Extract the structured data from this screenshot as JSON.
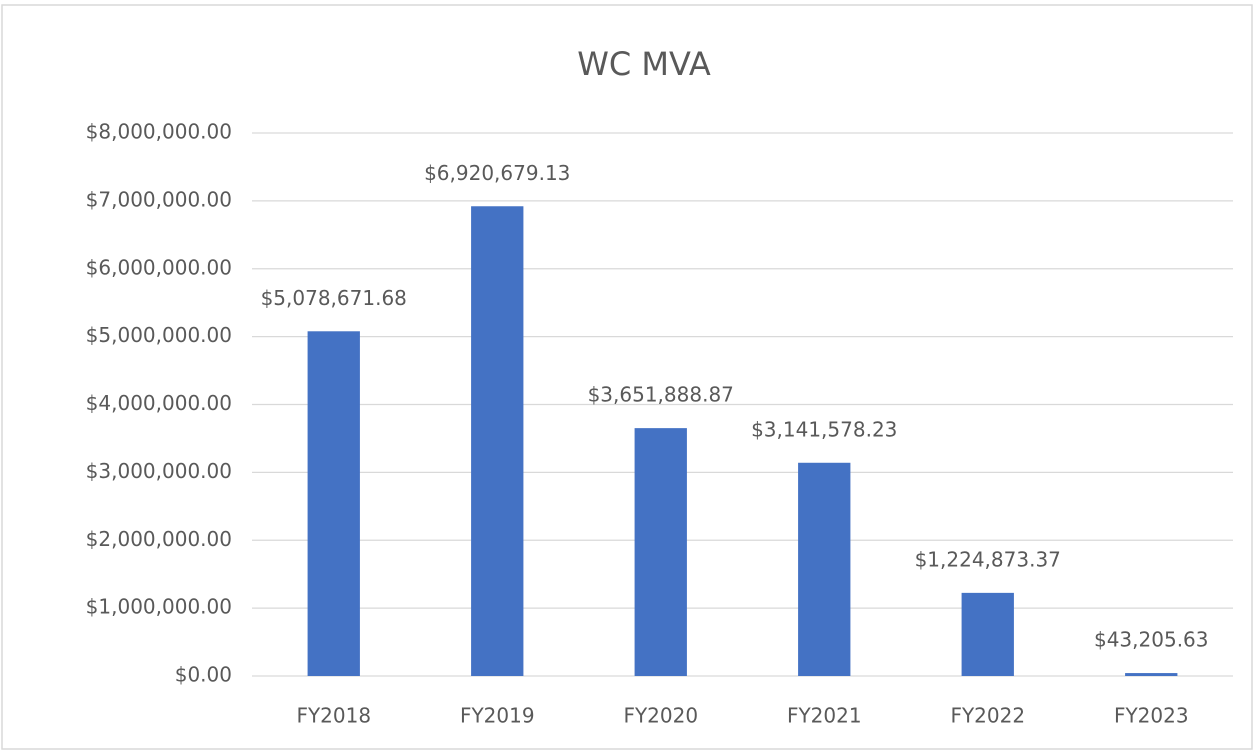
{
  "chart_data": {
    "type": "bar",
    "title": "WC MVA",
    "categories": [
      "FY2018",
      "FY2019",
      "FY2020",
      "FY2021",
      "FY2022",
      "FY2023"
    ],
    "values": [
      5078671.68,
      6920679.13,
      3651888.87,
      3141578.23,
      1224873.37,
      43205.63
    ],
    "value_labels": [
      "$5,078,671.68",
      "$6,920,679.13",
      "$3,651,888.87",
      "$3,141,578.23",
      "$1,224,873.37",
      "$43,205.63"
    ],
    "color": "#4472c4",
    "ylim": [
      0,
      8000000
    ],
    "yticks": [
      {
        "value": 0,
        "label": "$0.00"
      },
      {
        "value": 1000000,
        "label": "$1,000,000.00"
      },
      {
        "value": 2000000,
        "label": "$2,000,000.00"
      },
      {
        "value": 3000000,
        "label": "$3,000,000.00"
      },
      {
        "value": 4000000,
        "label": "$4,000,000.00"
      },
      {
        "value": 5000000,
        "label": "$5,000,000.00"
      },
      {
        "value": 6000000,
        "label": "$6,000,000.00"
      },
      {
        "value": 7000000,
        "label": "$7,000,000.00"
      },
      {
        "value": 8000000,
        "label": "$8,000,000.00"
      }
    ],
    "grid": true
  }
}
